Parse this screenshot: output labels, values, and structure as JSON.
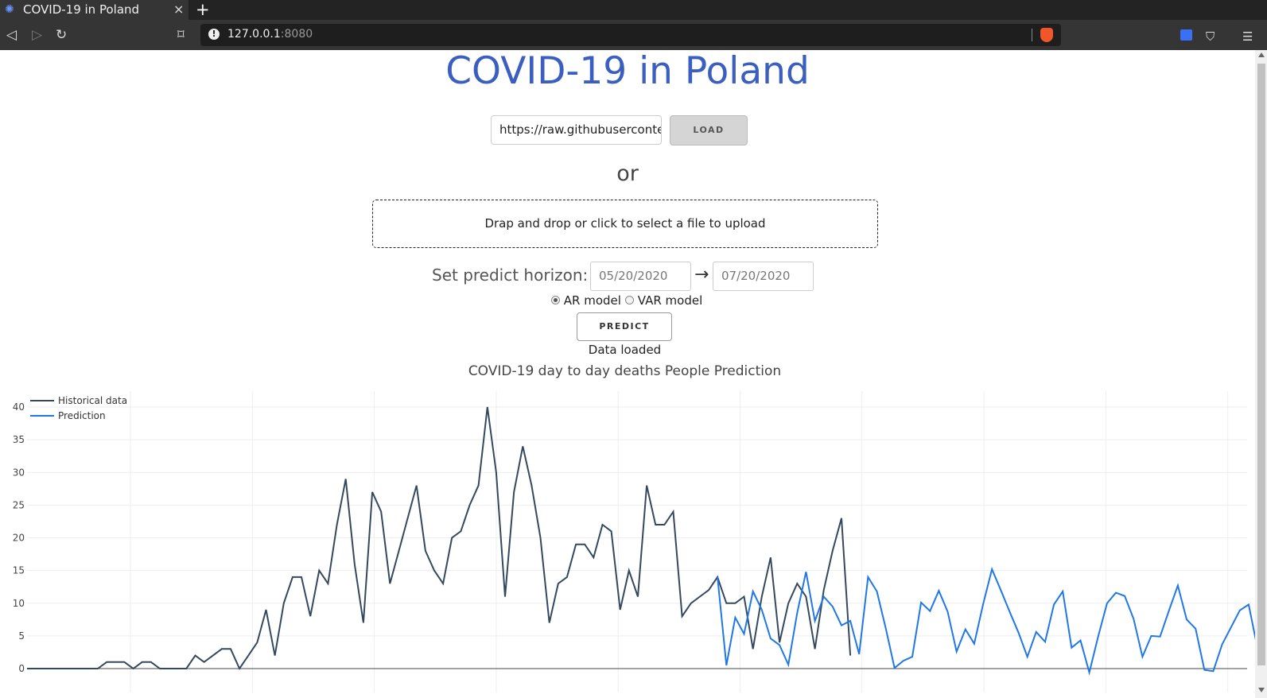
{
  "browser": {
    "tab_title": "COVID-19 in Poland",
    "tab_close": "×",
    "new_tab": "+",
    "url_host": "127.0.0.1",
    "url_port": ":8080"
  },
  "page": {
    "heading": "COVID-19 in Poland",
    "url_input_value": "https://raw.githubusercontent.com",
    "load_label": "LOAD",
    "or_label": "or",
    "dropzone_label": "Drap and drop or click to select a file to upload",
    "horizon_label": "Set predict horizon:",
    "date_from": "05/20/2020",
    "date_to": "07/20/2020",
    "arrow": "→",
    "model_ar": "AR model",
    "model_var": "VAR model",
    "selected_model": "AR model",
    "predict_label": "PREDICT",
    "status": "Data loaded"
  },
  "chart_data": {
    "type": "line",
    "title": "COVID-19 day to day deaths People Prediction",
    "ylim": [
      0,
      40
    ],
    "yticks": [
      "0",
      "5",
      "10",
      "15",
      "20",
      "25",
      "30",
      "35",
      "40"
    ],
    "grid": true,
    "legend_position": "top-left",
    "series": [
      {
        "name": "Historical data",
        "color": "#34495e",
        "x_start": 0,
        "values": [
          0,
          0,
          0,
          0,
          0,
          0,
          0,
          0,
          0,
          1,
          1,
          1,
          0,
          1,
          1,
          0,
          0,
          0,
          0,
          2,
          1,
          2,
          3,
          3,
          0,
          2,
          4,
          9,
          2,
          10,
          14,
          14,
          8,
          15,
          13,
          22,
          29,
          16,
          7,
          27,
          24,
          13,
          18,
          23,
          28,
          18,
          15,
          13,
          20,
          21,
          25,
          28,
          40,
          30,
          11,
          27,
          34,
          28,
          20,
          7,
          13,
          14,
          19,
          19,
          17,
          22,
          21,
          9,
          15,
          11,
          28,
          22,
          22,
          24,
          8,
          10,
          11,
          12,
          14,
          10,
          10,
          11,
          3,
          11,
          17,
          4,
          10,
          13,
          11,
          3,
          12,
          18,
          23,
          2
        ]
      },
      {
        "name": "Prediction",
        "color": "#1f77e8",
        "x_start": 78,
        "values": [
          14,
          0.5,
          7.8,
          5.3,
          11.8,
          9,
          4.6,
          3.6,
          0.6,
          8.5,
          14.8,
          7.3,
          11,
          9.5,
          6.6,
          7.3,
          2.2,
          14,
          11.8,
          6.2,
          0.1,
          1.2,
          1.8,
          10.1,
          8.8,
          11.9,
          8.7,
          2.6,
          6,
          3.8,
          9.8,
          15.2,
          12,
          8.7,
          5.5,
          1.8,
          5.6,
          4.1,
          9.8,
          11.8,
          3.2,
          4.3,
          -0.6,
          4.9,
          10,
          11.6,
          11.1,
          7.6,
          1.8,
          5,
          4.9,
          8.9,
          12.7,
          7.5,
          6.1,
          -0.2,
          -0.4,
          3.7,
          6.3,
          8.9,
          9.8,
          3.1
        ]
      }
    ]
  }
}
